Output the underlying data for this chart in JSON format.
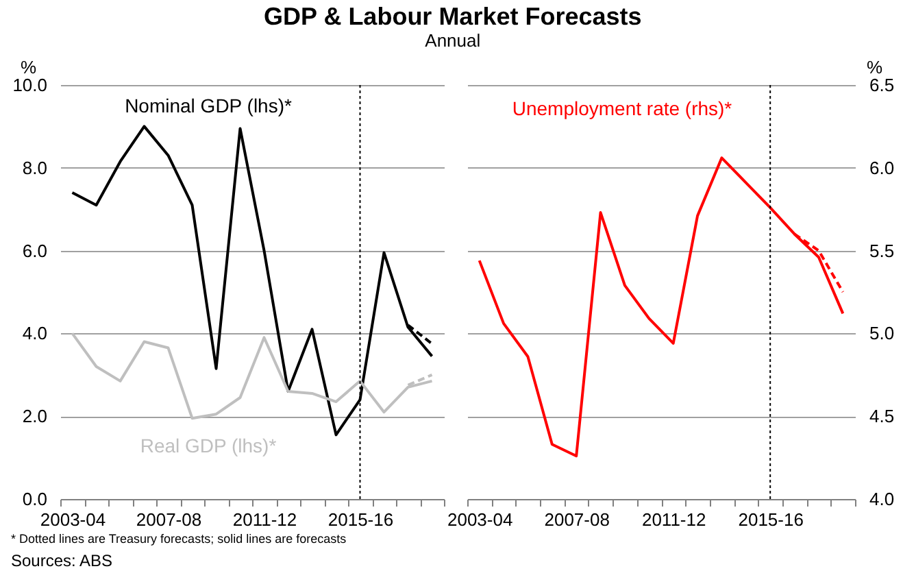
{
  "chart_data": [
    {
      "type": "line",
      "title": "GDP & Labour Market Forecasts",
      "subtitle": "Annual",
      "ylabel": "%",
      "categories": [
        "2003-04",
        null,
        null,
        null,
        "2007-08",
        null,
        null,
        null,
        "2011-12",
        null,
        null,
        null,
        "2015-16",
        null,
        null,
        null
      ],
      "series": [
        {
          "name": "Nominal GDP (lhs)*",
          "color": "#000000",
          "values": [
            7.4,
            7.1,
            8.15,
            9.0,
            8.3,
            7.1,
            3.15,
            8.95,
            6.0,
            2.6,
            4.1,
            1.55,
            2.4,
            5.95,
            4.15,
            3.45
          ]
        },
        {
          "name": "Real GDP (lhs)*",
          "color": "#bfbfbf",
          "values": [
            4.0,
            3.2,
            2.85,
            3.8,
            3.65,
            1.95,
            2.05,
            2.45,
            3.9,
            2.6,
            2.55,
            2.35,
            2.85,
            2.1,
            2.7,
            2.85
          ]
        },
        {
          "color": "#000000",
          "line_style": "dashed",
          "values": [
            null,
            null,
            null,
            null,
            null,
            null,
            null,
            null,
            null,
            null,
            null,
            null,
            null,
            null,
            4.2,
            3.75
          ]
        },
        {
          "color": "#bfbfbf",
          "line_style": "dashed",
          "values": [
            null,
            null,
            null,
            null,
            null,
            null,
            null,
            null,
            null,
            null,
            null,
            null,
            null,
            null,
            2.75,
            3.0
          ]
        }
      ],
      "ylim": [
        0,
        10
      ],
      "yticks": [
        {
          "value": 0,
          "label": "0.0"
        },
        {
          "value": 2,
          "label": "2.0"
        },
        {
          "value": 4,
          "label": "4.0"
        },
        {
          "value": 6,
          "label": "6.0"
        },
        {
          "value": 8,
          "label": "8.0"
        },
        {
          "value": 10,
          "label": "10.0"
        }
      ],
      "grid": "y",
      "legend": false,
      "line_style": "solid",
      "ref_lines": [
        {
          "axis": "x",
          "value": "2015-16",
          "color": "#000000",
          "line_style": "dotted"
        }
      ],
      "annotations": [
        "* Dotted lines are Treasury forecasts; solid lines are forecasts",
        "Sources: ABS"
      ]
    },
    {
      "type": "line",
      "ylabel": "%",
      "categories": [
        "2003-04",
        null,
        null,
        null,
        "2007-08",
        null,
        null,
        null,
        "2011-12",
        null,
        null,
        null,
        "2015-16",
        null,
        null,
        null
      ],
      "series": [
        {
          "name": "Unemployment rate (rhs)*",
          "color": "#ff0000",
          "values": [
            5.44,
            5.06,
            4.86,
            4.33,
            4.26,
            5.73,
            5.29,
            5.09,
            4.94,
            5.71,
            6.06,
            5.91,
            5.76,
            5.6,
            5.46,
            5.12
          ]
        },
        {
          "color": "#ff0000",
          "line_style": "dashed",
          "values": [
            null,
            null,
            null,
            null,
            null,
            null,
            null,
            null,
            null,
            null,
            null,
            null,
            null,
            5.6,
            5.5,
            5.25
          ]
        }
      ],
      "ylim": [
        4,
        6.5
      ],
      "yticks": [
        {
          "value": 4,
          "label": "4.0"
        },
        4.5,
        {
          "value": 5,
          "label": "5.0"
        },
        5.5,
        {
          "value": 6,
          "label": "6.0"
        },
        6.5
      ],
      "grid": "y",
      "legend": false,
      "line_style": "solid",
      "ref_lines": [
        {
          "axis": "x",
          "value": "2015-16",
          "color": "#000000",
          "line_style": "dotted"
        }
      ]
    }
  ]
}
